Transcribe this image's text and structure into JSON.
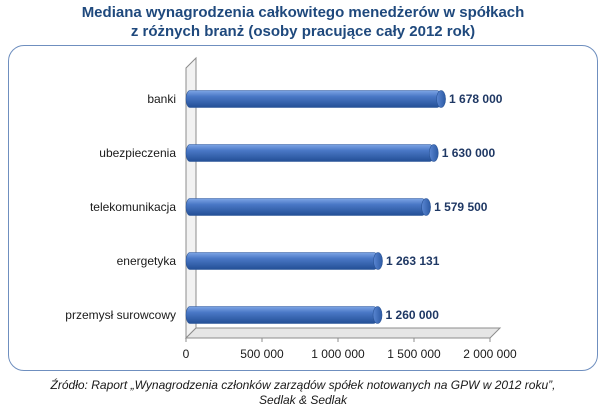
{
  "title": {
    "line1": "Mediana wynagrodzenia całkowitego menedżerów w spółkach",
    "line2": "z różnych branż (osoby pracujące cały 2012 rok)"
  },
  "source": {
    "line1": "Źródło: Raport „Wynagrodzenia członków zarządów spółek notowanych na GPW w 2012 roku”,",
    "line2": "Sedlak & Sedlak"
  },
  "chart_data": {
    "type": "bar",
    "orientation": "horizontal",
    "categories": [
      "banki",
      "ubezpieczenia",
      "telekomunikacja",
      "energetyka",
      "przemysł surowcowy"
    ],
    "values": [
      1678000,
      1630000,
      1579500,
      1263131,
      1260000
    ],
    "value_labels": [
      "1 678 000",
      "1 630 000",
      "1 579 500",
      "1 263 131",
      "1 260 000"
    ],
    "xlim": [
      0,
      2000000
    ],
    "x_ticks": [
      0,
      500000,
      1000000,
      1500000,
      2000000
    ],
    "x_tick_labels": [
      "0",
      "500 000",
      "1 000 000",
      "1 500 000",
      "2 000 000"
    ],
    "title": "Mediana wynagrodzenia całkowitego menedżerów w spółkach z różnych branż (osoby pracujące cały 2012 rok)",
    "xlabel": "",
    "ylabel": "",
    "bar_color": "#4472C4",
    "grid": false,
    "legend": "none"
  }
}
